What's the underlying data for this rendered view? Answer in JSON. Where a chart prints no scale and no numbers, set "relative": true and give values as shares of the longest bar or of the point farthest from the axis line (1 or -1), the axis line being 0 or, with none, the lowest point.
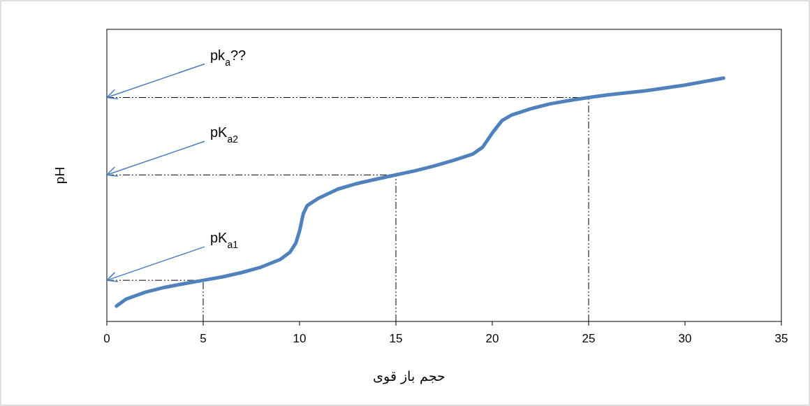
{
  "chart_data": {
    "type": "line",
    "relative": true,
    "color": "#4f81bd",
    "x": [
      0.5,
      1,
      2,
      3,
      4,
      5,
      6,
      7,
      8,
      9,
      9.5,
      9.8,
      10,
      10.2,
      10.4,
      11,
      12,
      13,
      14,
      15,
      16,
      17,
      18,
      19,
      19.5,
      20,
      20.5,
      21,
      22,
      23,
      24,
      25,
      26,
      28,
      30,
      32
    ],
    "values": [
      0.063,
      0.092,
      0.12,
      0.14,
      0.155,
      0.169,
      0.183,
      0.201,
      0.223,
      0.255,
      0.284,
      0.321,
      0.372,
      0.444,
      0.476,
      0.507,
      0.544,
      0.567,
      0.585,
      0.602,
      0.619,
      0.639,
      0.662,
      0.688,
      0.716,
      0.774,
      0.825,
      0.848,
      0.874,
      0.894,
      0.908,
      0.92,
      0.931,
      0.948,
      0.971,
      1
    ],
    "xlim": [
      0,
      35
    ],
    "xticks": [
      0,
      5,
      10,
      15,
      20,
      25,
      30,
      35
    ],
    "xlabel": "حجم باز قوی",
    "ylabel": "pH",
    "ref_lines": [
      {
        "axis": "x",
        "value": 5,
        "color": "#000000"
      },
      {
        "axis": "x",
        "value": 15,
        "color": "#000000"
      },
      {
        "axis": "x",
        "value": 25,
        "color": "#000000"
      },
      {
        "axis": "y",
        "value": 0.169,
        "color": "#000000"
      },
      {
        "axis": "y",
        "value": 0.602,
        "color": "#000000"
      },
      {
        "axis": "y",
        "value": 0.92,
        "color": "#000000"
      }
    ],
    "annotations": [
      {
        "text": "pK$_{a1}$",
        "y": 0.169
      },
      {
        "text": "pK$_{a2}$",
        "y": 0.602
      },
      {
        "text": "pk$_{a}$??",
        "y": 0.92
      }
    ]
  }
}
